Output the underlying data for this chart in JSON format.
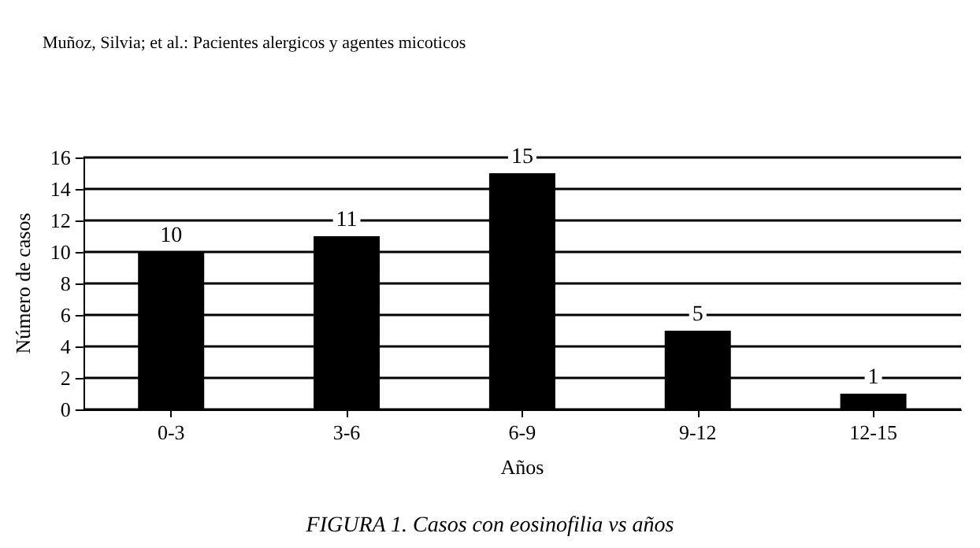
{
  "chart_data": {
    "type": "bar",
    "title": "FIGURA 1. Casos con eosinofilia vs años",
    "annotations": [
      "Muñoz, Silvia; et al.: Pacientes alergicos y agentes micoticos"
    ],
    "xlabel": "Años",
    "ylabel": "Número de casos",
    "categories": [
      "0-3",
      "3-6",
      "6-9",
      "9-12",
      "12-15"
    ],
    "values": [
      10,
      11,
      15,
      5,
      1
    ],
    "color": "#000000",
    "ylim": [
      0,
      16
    ],
    "yticks": [
      0,
      2,
      4,
      6,
      8,
      10,
      12,
      14,
      16
    ],
    "grid": "y",
    "data_labels": true
  }
}
